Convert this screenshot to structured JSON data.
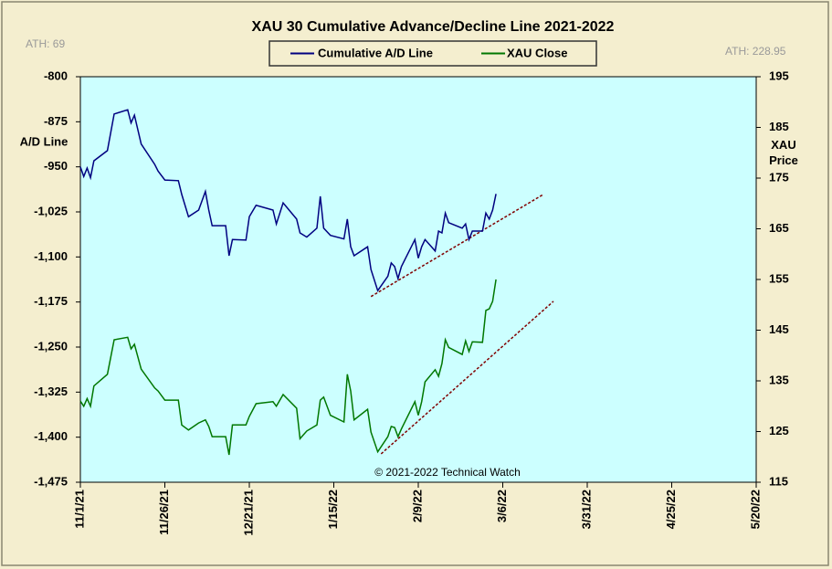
{
  "chart_data": {
    "type": "line",
    "title": "XAU 30 Cumulative Advance/Decline Line 2021-2022",
    "ylabel": "A/D Line",
    "y2label": "XAU Price",
    "annotations": [
      "ATH: 69",
      "ATH: 228.95",
      "© 2021-2022 Technical Watch"
    ],
    "legend": "top",
    "x": [
      "11/1/21",
      "11/2/21",
      "11/3/21",
      "11/4/21",
      "11/5/21",
      "11/9/21",
      "11/11/21",
      "11/15/21",
      "11/16/21",
      "11/17/21",
      "11/19/21",
      "11/23/21",
      "11/24/21",
      "11/26/21",
      "11/30/21",
      "12/1/21",
      "12/3/21",
      "12/6/21",
      "12/8/21",
      "12/9/21",
      "12/10/21",
      "12/14/21",
      "12/15/21",
      "12/16/21",
      "12/20/21",
      "12/21/21",
      "12/23/21",
      "12/28/21",
      "12/29/21",
      "12/31/21",
      "1/4/22",
      "1/5/22",
      "1/7/22",
      "1/10/22",
      "1/11/22",
      "1/12/22",
      "1/14/22",
      "1/18/22",
      "1/19/22",
      "1/20/22",
      "1/21/22",
      "1/25/22",
      "1/26/22",
      "1/28/22",
      "1/31/22",
      "2/1/22",
      "2/2/22",
      "2/3/22",
      "2/4/22",
      "2/8/22",
      "2/9/22",
      "2/10/22",
      "2/11/22",
      "2/14/22",
      "2/15/22",
      "2/16/22",
      "2/17/22",
      "2/18/22",
      "2/22/22",
      "2/23/22",
      "2/24/22",
      "2/25/22",
      "2/28/22",
      "3/1/22",
      "3/2/22",
      "3/3/22",
      "3/4/22"
    ],
    "series": [
      {
        "name": "Cumulative A/D Line",
        "color": "#000080",
        "axis": "y",
        "values": [
          -950,
          -966,
          -952,
          -968,
          -940,
          -923,
          -862,
          -855,
          -877,
          -864,
          -912,
          -946,
          -957,
          -972,
          -973,
          -996,
          -1033,
          -1022,
          -991,
          -1022,
          -1048,
          -1048,
          -1098,
          -1071,
          -1072,
          -1033,
          -1014,
          -1022,
          -1045,
          -1010,
          -1037,
          -1060,
          -1067,
          -1052,
          -999,
          -1052,
          -1064,
          -1070,
          -1037,
          -1083,
          -1098,
          -1083,
          -1121,
          -1156,
          -1132,
          -1110,
          -1116,
          -1136,
          -1116,
          -1071,
          -1102,
          -1083,
          -1071,
          -1090,
          -1057,
          -1060,
          -1027,
          -1043,
          -1052,
          -1045,
          -1071,
          -1057,
          -1057,
          -1027,
          -1037,
          -1022,
          -995
        ]
      },
      {
        "name": "XAU Close",
        "color": "#007700",
        "axis": "y2",
        "values": [
          131,
          130,
          131.5,
          130,
          134,
          136.3,
          143.1,
          143.6,
          141.3,
          142.2,
          137.3,
          133.6,
          133,
          131.2,
          131.2,
          126.3,
          125.3,
          126.7,
          127.3,
          126,
          124,
          124,
          120.4,
          126.3,
          126.3,
          128,
          130.5,
          130.9,
          130,
          132.3,
          129.6,
          123.6,
          125.1,
          126.3,
          131.2,
          131.8,
          128.2,
          126.9,
          136.3,
          133,
          127.3,
          129.4,
          124.9,
          121,
          124,
          126,
          125.8,
          124,
          125.5,
          130.9,
          128.2,
          130.9,
          134.8,
          137.2,
          135.9,
          138.4,
          143.1,
          141.6,
          140.2,
          142.9,
          140.8,
          142.7,
          142.6,
          148.9,
          149.2,
          150.7,
          155
        ]
      }
    ],
    "trendlines": [
      {
        "x": [
          "1/26/22",
          "3/18/22"
        ],
        "values": [
          -1166,
          -996
        ],
        "axis": "y",
        "color": "#800000"
      },
      {
        "x": [
          "1/29/22",
          "3/21/22"
        ],
        "values": [
          120.6,
          150.7
        ],
        "axis": "y2",
        "color": "#800000"
      }
    ],
    "xlim": [
      "11/1/21",
      "5/20/22"
    ],
    "xticks": [
      "11/1/21",
      "11/26/21",
      "12/21/21",
      "1/15/22",
      "2/9/22",
      "3/6/22",
      "3/31/22",
      "4/25/22",
      "5/20/22"
    ],
    "ylim": [
      -1475,
      -800
    ],
    "yticks": [
      -800,
      -875,
      -950,
      {
        "value": -1025,
        "label": "-1,025"
      },
      {
        "value": -1100,
        "label": "-1,100"
      },
      {
        "value": -1175,
        "label": "-1,175"
      },
      {
        "value": -1250,
        "label": "-1,250"
      },
      {
        "value": -1325,
        "label": "-1,325"
      },
      {
        "value": -1400,
        "label": "-1,400"
      },
      {
        "value": -1475,
        "label": "-1,475"
      }
    ],
    "y2lim": [
      115,
      195
    ],
    "y2ticks": [
      115,
      125,
      135,
      145,
      155,
      165,
      175,
      185,
      195
    ],
    "plot_background": "#ccffff"
  }
}
